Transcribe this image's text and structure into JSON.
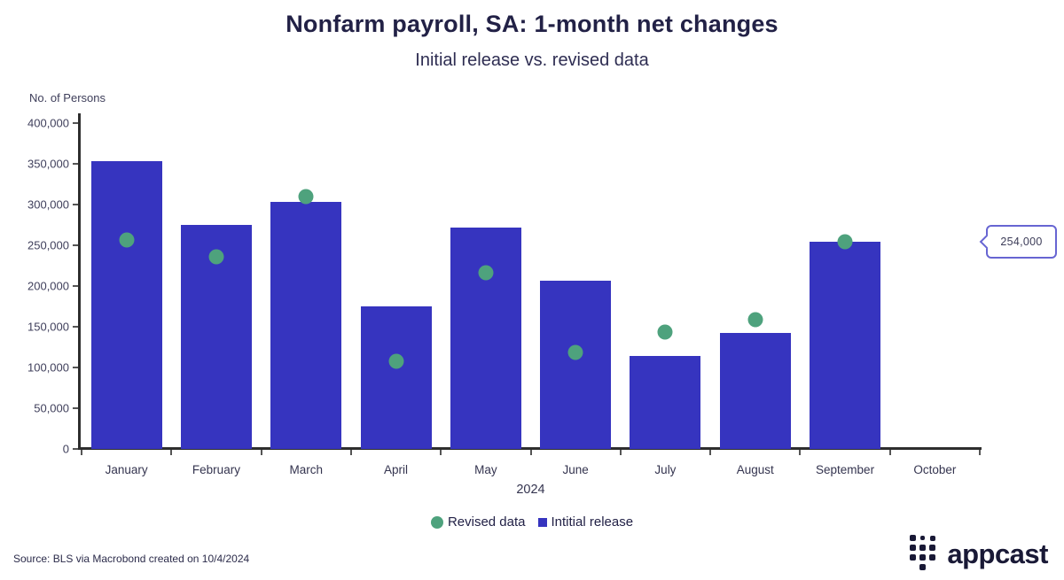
{
  "header": {
    "title": "Nonfarm payroll, SA: 1-month net changes",
    "subtitle": "Initial release vs. revised data"
  },
  "chart_data": {
    "type": "bar",
    "title": "Nonfarm payroll, SA: 1-month net changes",
    "subtitle": "Initial release vs. revised data",
    "ylabel": "No. of Persons",
    "xlabel": "2024",
    "ylim": [
      0,
      400000
    ],
    "ytick_step": 50000,
    "yticks": [
      "400,000",
      "350,000",
      "300,000",
      "250,000",
      "200,000",
      "150,000",
      "100,000",
      "50,000",
      "0"
    ],
    "categories": [
      "January",
      "February",
      "March",
      "April",
      "May",
      "June",
      "July",
      "August",
      "September",
      "October"
    ],
    "grid": false,
    "legend_position": "bottom",
    "series": [
      {
        "name": "Initial release",
        "type": "bar",
        "color": "#3634bf",
        "values": [
          353000,
          275000,
          303000,
          175000,
          272000,
          206000,
          114000,
          142000,
          254000,
          null
        ]
      },
      {
        "name": "Revised data",
        "type": "scatter",
        "color": "#4ea27d",
        "values": [
          256000,
          236000,
          310000,
          108000,
          216000,
          118000,
          144000,
          159000,
          254000,
          null
        ]
      }
    ],
    "annotation": {
      "label": "254,000",
      "value": 254000,
      "category": "September"
    }
  },
  "legend": {
    "items": [
      {
        "label": "Revised data",
        "marker": "circle",
        "color": "#4ea27d"
      },
      {
        "label": "Intitial release",
        "marker": "square",
        "color": "#3634bf"
      }
    ]
  },
  "footer": {
    "source": "Source: BLS via Macrobond created on 10/4/2024",
    "logo_text": "appcast"
  },
  "colors": {
    "bar": "#3634bf",
    "dot": "#4ea27d",
    "axis": "#2e2e2e",
    "callout_border": "#6765d2",
    "text_dark": "#222146"
  }
}
